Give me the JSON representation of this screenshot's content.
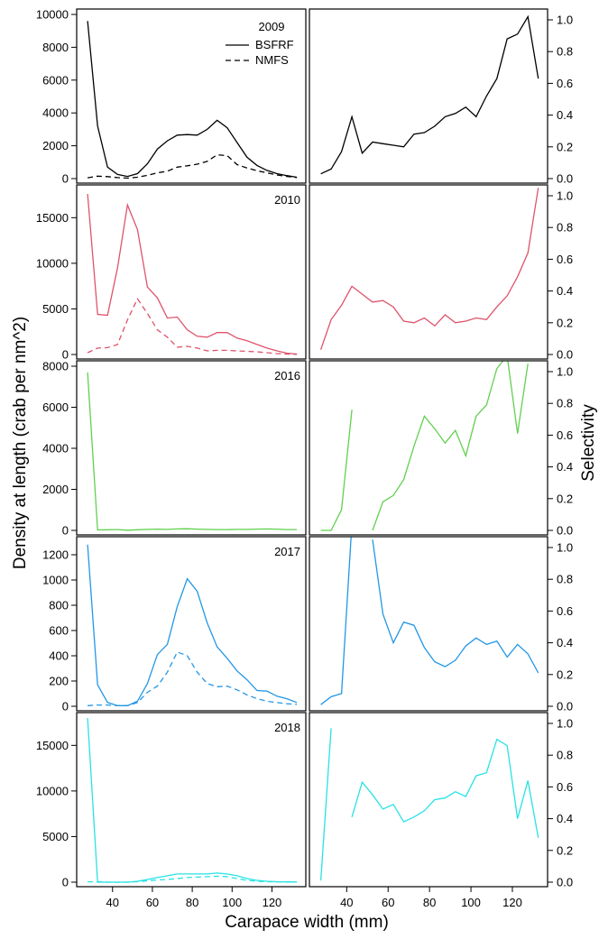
{
  "chart_data": {
    "type": "line",
    "xlabel": "Carapace width (mm)",
    "ylabel_left": "Density at length (crab per nm^2)",
    "ylabel_right": "Selectivity",
    "x_ticks": [
      40,
      60,
      80,
      100,
      120
    ],
    "xlim": [
      22,
      137
    ],
    "legend": {
      "title": "2009",
      "entries": [
        {
          "label": "BSFRF",
          "style": "solid"
        },
        {
          "label": "NMFS",
          "style": "dashed"
        }
      ]
    },
    "panels": [
      {
        "year": "2009",
        "color": "#000000",
        "density_ylim": [
          0,
          10000
        ],
        "density_ticks": [
          "0",
          "2000",
          "4000",
          "6000",
          "8000",
          "10000"
        ],
        "selectivity_ylim": [
          0,
          1.05
        ],
        "x": [
          27.5,
          32.5,
          37.5,
          42.5,
          47.5,
          52.5,
          57.5,
          62.5,
          67.5,
          72.5,
          77.5,
          82.5,
          87.5,
          92.5,
          97.5,
          102.5,
          107.5,
          112.5,
          117.5,
          122.5,
          127.5,
          132.5
        ],
        "bsfrf": [
          9600,
          3200,
          700,
          250,
          130,
          300,
          900,
          1800,
          2300,
          2650,
          2680,
          2650,
          3000,
          3550,
          3100,
          2200,
          1300,
          800,
          500,
          300,
          180,
          80
        ],
        "nmfs": [
          50,
          150,
          120,
          60,
          30,
          80,
          200,
          350,
          450,
          700,
          780,
          880,
          1050,
          1450,
          1400,
          850,
          650,
          480,
          350,
          220,
          130,
          60
        ],
        "selectivity": [
          0.03,
          0.06,
          0.17,
          0.39,
          0.16,
          0.23,
          0.22,
          0.21,
          0.2,
          0.28,
          0.29,
          0.33,
          0.39,
          0.41,
          0.45,
          0.39,
          0.52,
          0.63,
          0.88,
          0.91,
          1.02,
          0.63
        ]
      },
      {
        "year": "2010",
        "color": "#DF536B",
        "density_ylim": [
          0,
          18000
        ],
        "density_ticks": [
          "0",
          "5000",
          "10000",
          "15000"
        ],
        "selectivity_ylim": [
          0,
          1.05
        ],
        "x": [
          27.5,
          32.5,
          37.5,
          42.5,
          47.5,
          52.5,
          57.5,
          62.5,
          67.5,
          72.5,
          77.5,
          82.5,
          87.5,
          92.5,
          97.5,
          102.5,
          107.5,
          112.5,
          117.5,
          122.5,
          127.5,
          132.5
        ],
        "bsfrf": [
          17600,
          4400,
          4300,
          9500,
          16400,
          13700,
          7400,
          6200,
          4000,
          4100,
          2700,
          2000,
          1900,
          2400,
          2400,
          1800,
          1500,
          1100,
          700,
          400,
          150,
          50
        ],
        "nmfs": [
          200,
          700,
          750,
          1100,
          3800,
          6100,
          4500,
          2700,
          1900,
          800,
          900,
          700,
          400,
          450,
          450,
          400,
          350,
          300,
          200,
          100,
          50,
          20
        ],
        "selectivity": [
          0.03,
          0.22,
          0.31,
          0.43,
          0.38,
          0.33,
          0.34,
          0.3,
          0.21,
          0.2,
          0.23,
          0.18,
          0.25,
          0.2,
          0.21,
          0.23,
          0.22,
          0.3,
          0.37,
          0.49,
          0.64,
          1.05
        ]
      },
      {
        "year": "2016",
        "color": "#61D04F",
        "density_ylim": [
          0,
          8000
        ],
        "density_ticks": [
          "0",
          "2000",
          "4000",
          "6000",
          "8000"
        ],
        "selectivity_ylim": [
          0,
          1.0
        ],
        "x": [
          27.5,
          32.5,
          37.5,
          42.5,
          47.5,
          52.5,
          57.5,
          62.5,
          67.5,
          72.5,
          77.5,
          82.5,
          87.5,
          92.5,
          97.5,
          102.5,
          107.5,
          112.5,
          117.5,
          122.5,
          127.5,
          132.5
        ],
        "bsfrf": [
          7700,
          20,
          30,
          40,
          10,
          30,
          50,
          60,
          50,
          70,
          80,
          60,
          50,
          40,
          40,
          50,
          50,
          60,
          70,
          60,
          40,
          40
        ],
        "nmfs": [
          0,
          0,
          0,
          0,
          0,
          0,
          0,
          0,
          0,
          0,
          0,
          0,
          0,
          0,
          0,
          0,
          0,
          0,
          0,
          0,
          0,
          0
        ],
        "selectivity": [
          0.0,
          0.0,
          0.13,
          0.76,
          null,
          0.0,
          0.18,
          0.22,
          0.32,
          0.53,
          0.72,
          0.64,
          0.55,
          0.63,
          0.47,
          0.72,
          0.79,
          1.02,
          1.1,
          0.61,
          1.05,
          null
        ]
      },
      {
        "year": "2017",
        "color": "#2297E6",
        "density_ylim": [
          0,
          1300
        ],
        "density_ticks": [
          "0",
          "200",
          "400",
          "600",
          "800",
          "1000",
          "1200"
        ],
        "selectivity_ylim": [
          0,
          1.0
        ],
        "x": [
          27.5,
          32.5,
          37.5,
          42.5,
          47.5,
          52.5,
          57.5,
          62.5,
          67.5,
          72.5,
          77.5,
          82.5,
          87.5,
          92.5,
          97.5,
          102.5,
          107.5,
          112.5,
          117.5,
          122.5,
          127.5,
          132.5
        ],
        "bsfrf": [
          1280,
          170,
          30,
          5,
          5,
          40,
          180,
          410,
          490,
          790,
          1010,
          910,
          660,
          470,
          380,
          280,
          210,
          125,
          120,
          80,
          60,
          30
        ],
        "nmfs": [
          5,
          10,
          10,
          5,
          5,
          30,
          110,
          160,
          270,
          430,
          400,
          270,
          180,
          155,
          160,
          130,
          90,
          60,
          40,
          30,
          20,
          15
        ],
        "selectivity": [
          0.01,
          0.06,
          0.08,
          1.15,
          null,
          1.05,
          0.58,
          0.4,
          0.53,
          0.51,
          0.37,
          0.28,
          0.25,
          0.29,
          0.38,
          0.43,
          0.39,
          0.41,
          0.31,
          0.39,
          0.33,
          0.21
        ]
      },
      {
        "year": "2018",
        "color": "#28E2E5",
        "density_ylim": [
          0,
          18000
        ],
        "density_ticks": [
          "0",
          "5000",
          "10000",
          "15000"
        ],
        "selectivity_ylim": [
          0,
          1.0
        ],
        "x": [
          27.5,
          32.5,
          37.5,
          42.5,
          47.5,
          52.5,
          57.5,
          62.5,
          67.5,
          72.5,
          77.5,
          82.5,
          87.5,
          92.5,
          97.5,
          102.5,
          107.5,
          112.5,
          117.5,
          122.5,
          127.5,
          132.5
        ],
        "bsfrf": [
          18000,
          0,
          0,
          0,
          0,
          100,
          300,
          500,
          700,
          900,
          900,
          900,
          900,
          1000,
          900,
          700,
          400,
          200,
          100,
          50,
          30,
          20
        ],
        "nmfs": [
          50,
          30,
          0,
          0,
          0,
          50,
          150,
          250,
          300,
          400,
          500,
          550,
          600,
          650,
          600,
          400,
          200,
          100,
          50,
          30,
          20,
          10
        ],
        "selectivity": [
          0.01,
          0.97,
          null,
          0.41,
          0.63,
          0.55,
          0.46,
          0.49,
          0.38,
          0.41,
          0.45,
          0.52,
          0.53,
          0.57,
          0.54,
          0.67,
          0.69,
          0.9,
          0.86,
          0.4,
          0.64,
          0.28
        ]
      }
    ]
  }
}
